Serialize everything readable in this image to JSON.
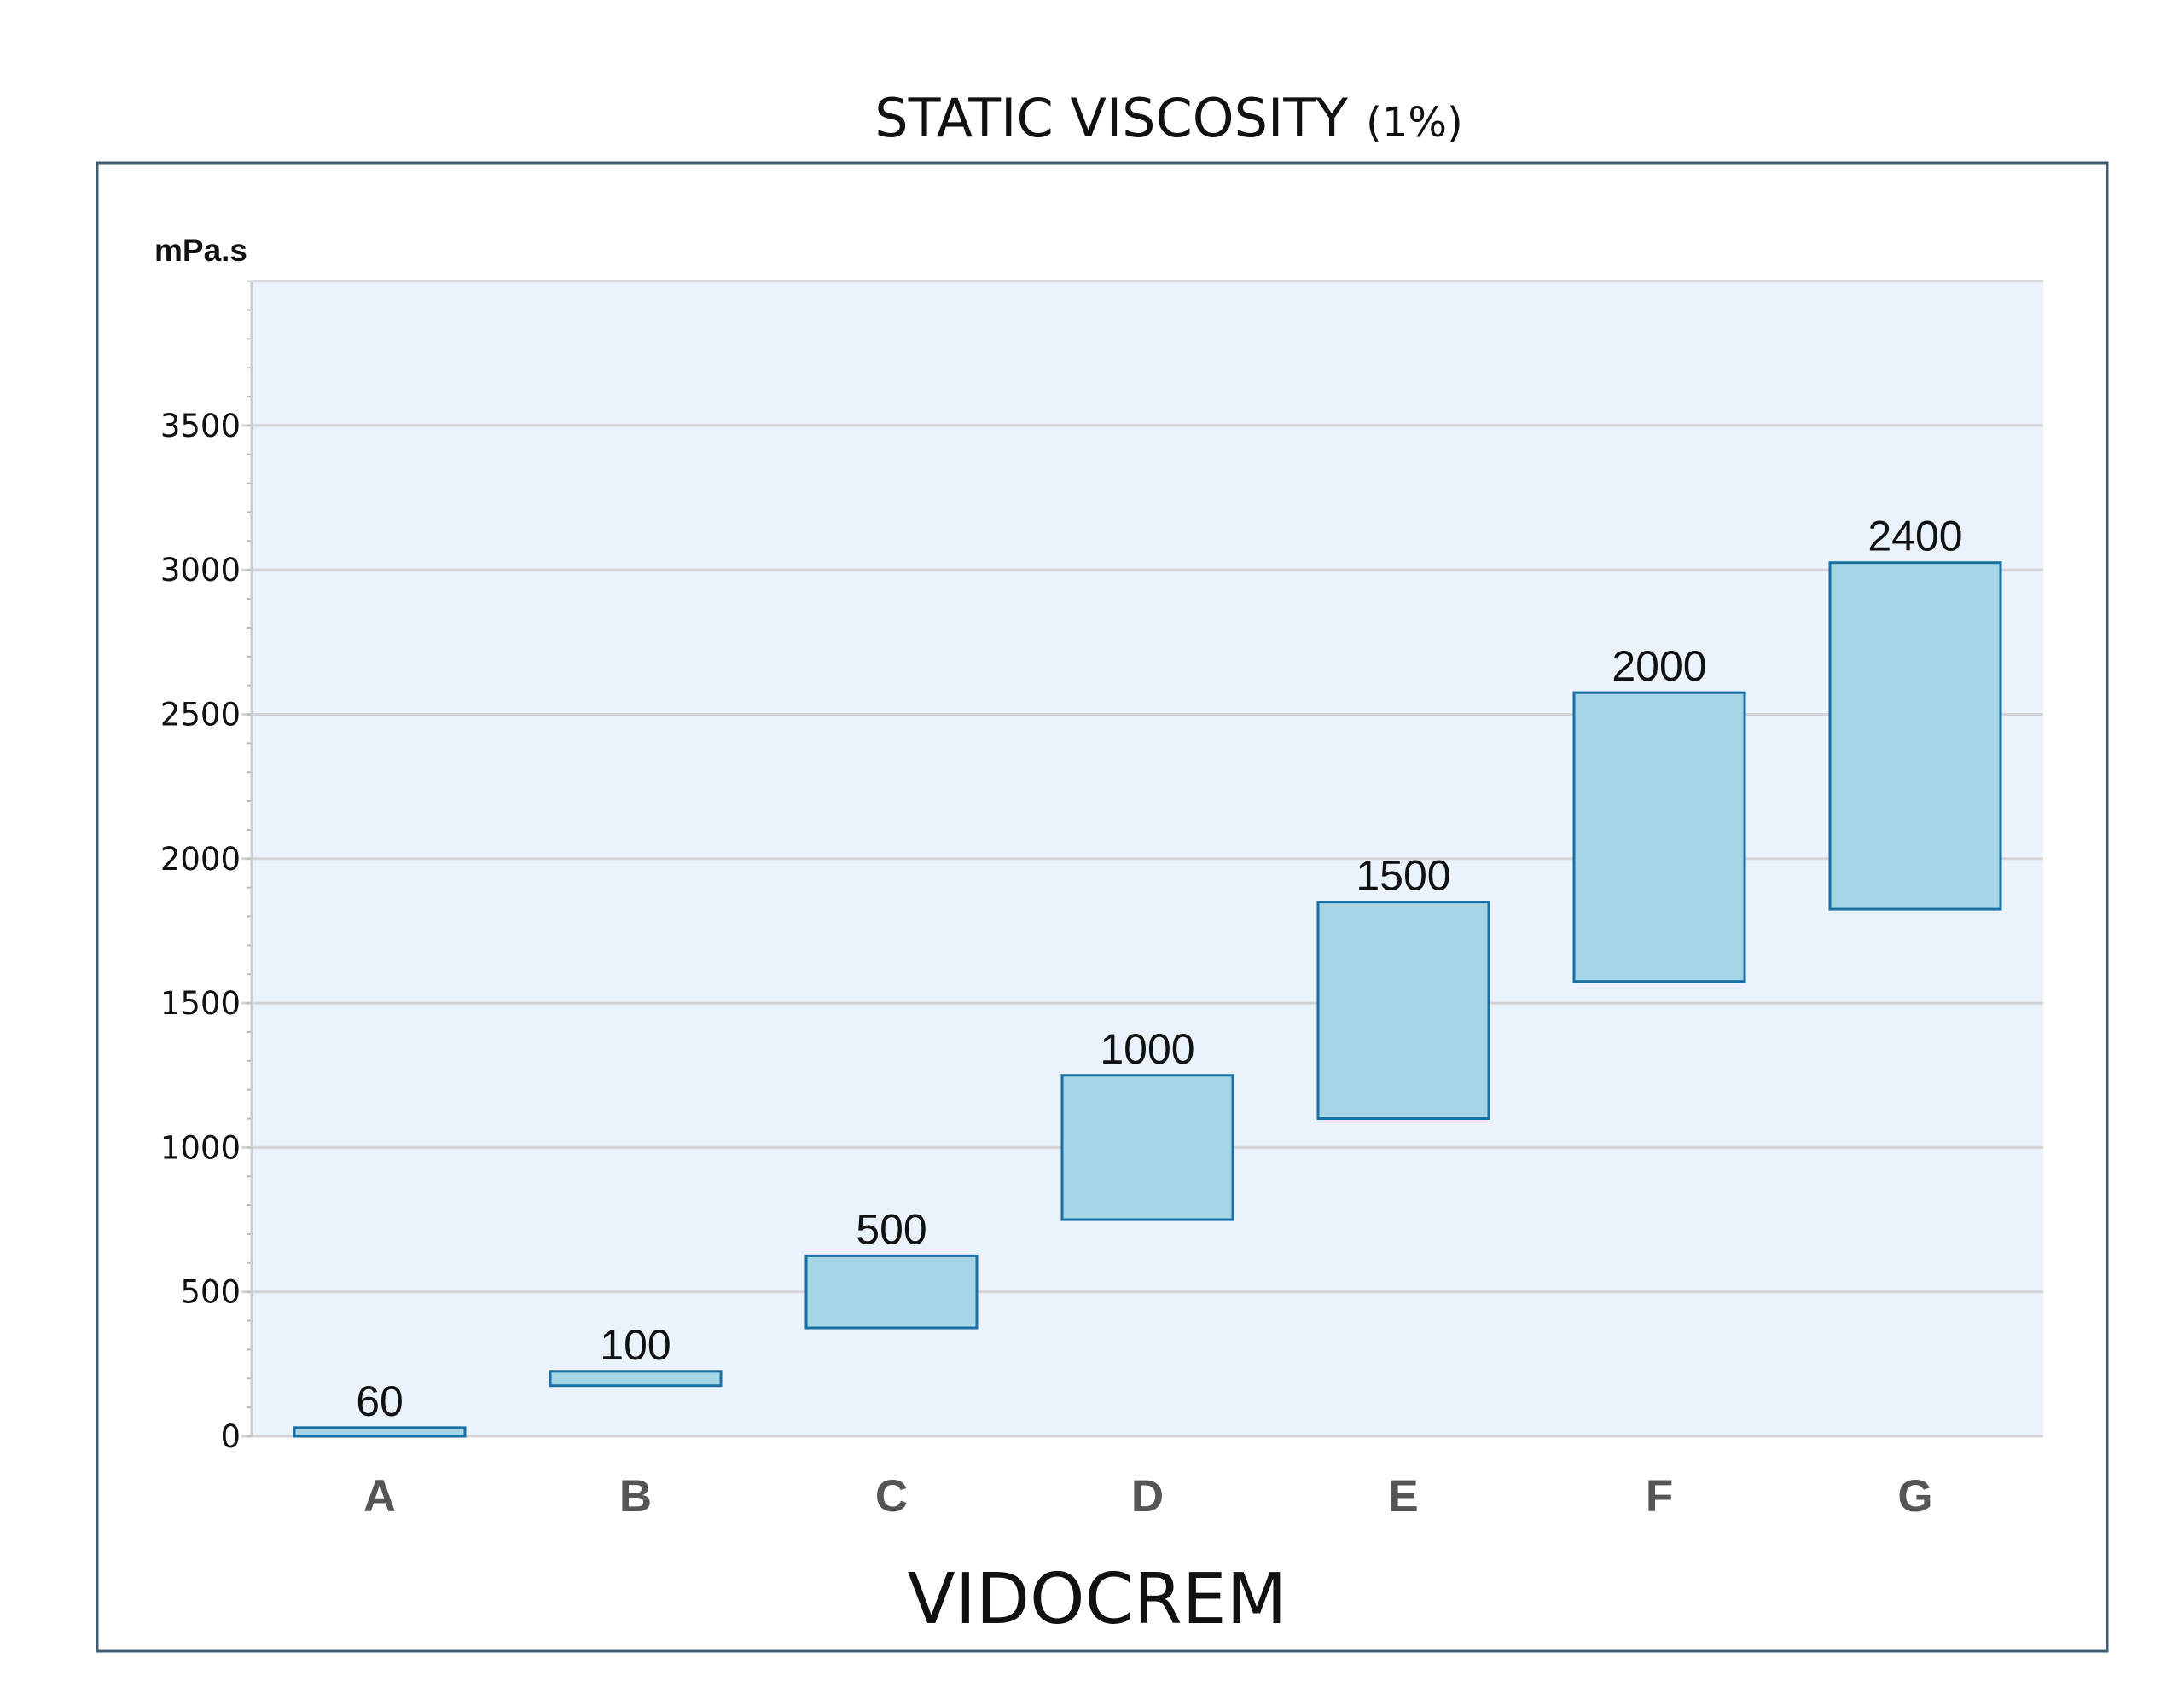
{
  "chart_data": {
    "type": "bar",
    "title": "STATIC VISCOSITY",
    "title_suffix": "(1%)",
    "ylabel": "mPa.s",
    "xlabel": "VIDOCREM",
    "ylim": [
      0,
      4000
    ],
    "yticks": [
      0,
      500,
      1000,
      1500,
      2000,
      2500,
      3000,
      3500
    ],
    "grid": true,
    "categories": [
      "A",
      "B",
      "C",
      "D",
      "E",
      "F",
      "G"
    ],
    "labels": [
      "60",
      "100",
      "500",
      "1000",
      "1500",
      "2000",
      "2400"
    ],
    "ranges": [
      [
        0,
        30
      ],
      [
        175,
        225
      ],
      [
        375,
        625
      ],
      [
        750,
        1250
      ],
      [
        1100,
        1850
      ],
      [
        1575,
        2575
      ],
      [
        1825,
        3025
      ]
    ]
  },
  "colors": {
    "bar_fill": "#a6d6e6",
    "bar_stroke": "#1a6fa3",
    "plot_bg": "#eaf2fb",
    "grid": "#d4d4d4",
    "frame": "#3f5f74"
  }
}
